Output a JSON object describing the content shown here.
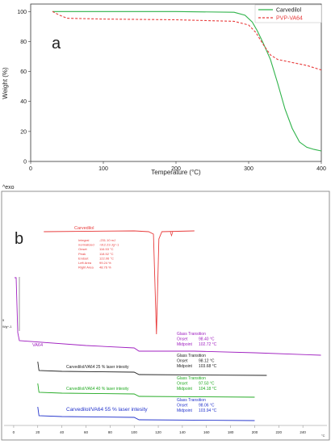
{
  "chart_data": [
    {
      "type": "line",
      "panel_label": "a",
      "xlabel": "Temperature (°C)",
      "ylabel": "Weight (%)",
      "xlim": [
        0,
        400
      ],
      "ylim": [
        0,
        105
      ],
      "xticks": [
        0,
        100,
        200,
        300,
        400
      ],
      "yticks": [
        0,
        20,
        40,
        60,
        80,
        100
      ],
      "legend_position": "top-right",
      "series": [
        {
          "name": "Carvedilol",
          "color": "#2fb34a",
          "style": "solid",
          "x": [
            30,
            100,
            200,
            280,
            295,
            305,
            312,
            320,
            330,
            340,
            350,
            360,
            370,
            380,
            390,
            400
          ],
          "y": [
            100,
            100,
            100,
            99.5,
            97.5,
            93,
            87,
            79,
            68,
            52,
            35,
            22,
            13,
            9.5,
            8,
            7
          ]
        },
        {
          "name": "PVP-VA64",
          "color": "#e83b3b",
          "style": "dashed",
          "x": [
            30,
            40,
            50,
            100,
            200,
            280,
            300,
            310,
            320,
            330,
            340,
            360,
            380,
            400
          ],
          "y": [
            100,
            97.5,
            95.5,
            95,
            94.5,
            93.5,
            91,
            86,
            78,
            71,
            68,
            66,
            64,
            61
          ]
        }
      ]
    },
    {
      "type": "line",
      "panel_label": "b",
      "corner_label": "^exo",
      "ylabel_top": "5",
      "ylabel_bottom": "Wg^-1",
      "xlim": [
        -8,
        260
      ],
      "xticks": [
        0,
        20,
        40,
        60,
        80,
        100,
        120,
        140,
        160,
        180,
        200,
        220,
        240
      ],
      "x_unit": "°C",
      "series": [
        {
          "name": "Carvedilol",
          "color": "#e83b3b",
          "annotation": {
            "labels": [
              "Integral",
              "normalized",
              "Onset",
              "Peak",
              "Endset",
              "Left Area",
              "Right Area"
            ],
            "values": [
              "-231.10 mJ",
              "-912.23 Jg^-1",
              "116.53 °C",
              "118.52 °C",
              "122.06 °C",
              "99.24 %",
              "48.76 %"
            ]
          }
        },
        {
          "name": "VA64",
          "color": "#a020c0",
          "glass_transition": {
            "title": "Glass Transition",
            "onset_label": "Onset",
            "onset": "98.40 °C",
            "midpoint_label": "Midpoint",
            "midpoint": "102.72 °C"
          }
        },
        {
          "name": "Carvedilol/VA64 25 % laser intesity",
          "color": "#222222",
          "glass_transition": {
            "title": "Glass Transition",
            "onset_label": "Onset",
            "onset": "98.12 °C",
            "midpoint_label": "Midpoint",
            "midpoint": "103.68 °C"
          }
        },
        {
          "name": "Carvedilol/VA64 40 % laser intesity",
          "color": "#22aa22",
          "glass_transition": {
            "title": "Glass Transition",
            "onset_label": "Onset",
            "onset": "97.50 °C",
            "midpoint_label": "Midpoint",
            "midpoint": "104.18 °C"
          }
        },
        {
          "name": "Carvedilol/VA64 55 % laser intesity",
          "color": "#2233cc",
          "glass_transition": {
            "title": "Glass Transition",
            "onset_label": "Onset",
            "onset": "98.06 °C",
            "midpoint_label": "Midpoint",
            "midpoint": "103.94 °C"
          }
        }
      ]
    }
  ]
}
